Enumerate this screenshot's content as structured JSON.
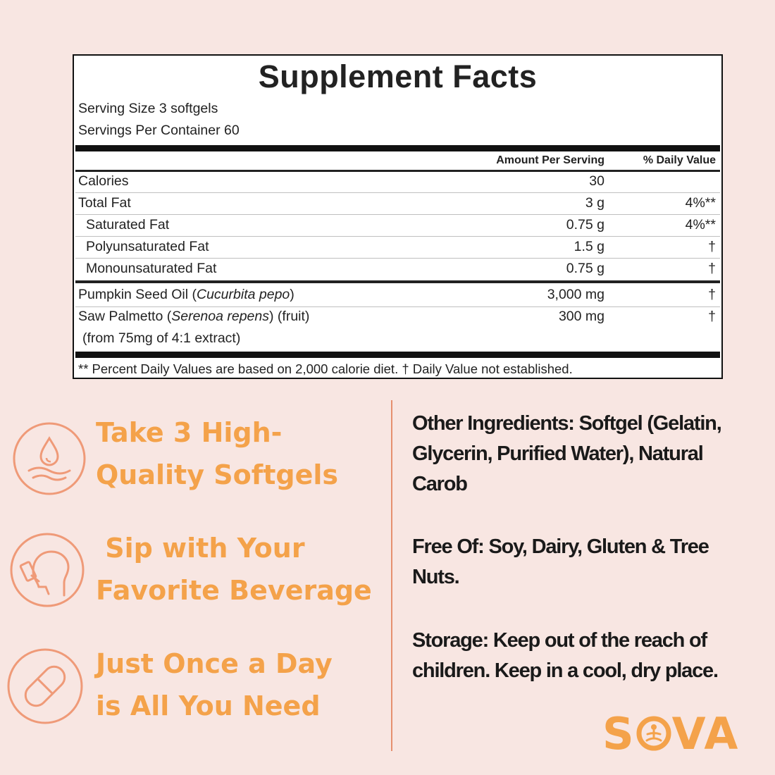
{
  "facts": {
    "title": "Supplement Facts",
    "serving_size": "Serving Size 3 softgels",
    "servings_per_container_label": "Servings Per Container",
    "servings_per_container_value": "60",
    "col_amount": "Amount Per Serving",
    "col_dv": "% Daily Value",
    "rows": [
      {
        "label": "Calories",
        "amount": "30",
        "dv": ""
      },
      {
        "label": "Total Fat",
        "amount": "3 g",
        "dv": "4%**"
      },
      {
        "label": "Saturated Fat",
        "amount": "0.75 g",
        "dv": "4%**"
      },
      {
        "label": "Polyunsaturated Fat",
        "amount": "1.5 g",
        "dv": "†"
      },
      {
        "label": "Monounsaturated Fat",
        "amount": "0.75 g",
        "dv": "†"
      }
    ],
    "pumpkin": {
      "name": "Pumpkin Seed Oil (",
      "latin": "Cucurbita pepo",
      "close": ")",
      "amount": "3,000 mg",
      "dv": "†"
    },
    "saw": {
      "name": "Saw Palmetto (",
      "latin": "Serenoa repens",
      "close": ") (fruit)",
      "sub": "(from 75mg of 4:1 extract)",
      "amount": "300 mg",
      "dv": "†"
    },
    "footnote": "** Percent Daily Values are based on 2,000 calorie diet. † Daily Value not established."
  },
  "steps": [
    {
      "icon": "water-drop-icon",
      "text": "Take 3 High-\nQuality Softgels"
    },
    {
      "icon": "drinking-person-icon",
      "text": " Sip with Your\nFavorite Beverage"
    },
    {
      "icon": "capsule-icon",
      "text": "Just Once a Day\nis All You Need"
    }
  ],
  "info": {
    "other": "Other Ingredients: Softgel (Gelatin, Glycerin, Purified Water), Natural Carob",
    "free_of": "Free Of: Soy, Dairy, Gluten & Tree Nuts.",
    "storage": "Storage: Keep out of the reach of children. Keep in a cool, dry place."
  },
  "brand": {
    "part1": "S",
    "part2": "VA"
  },
  "colors": {
    "accent": "#f4a24a",
    "icon_stroke": "#ef9a78",
    "background": "#f8e6e2"
  }
}
